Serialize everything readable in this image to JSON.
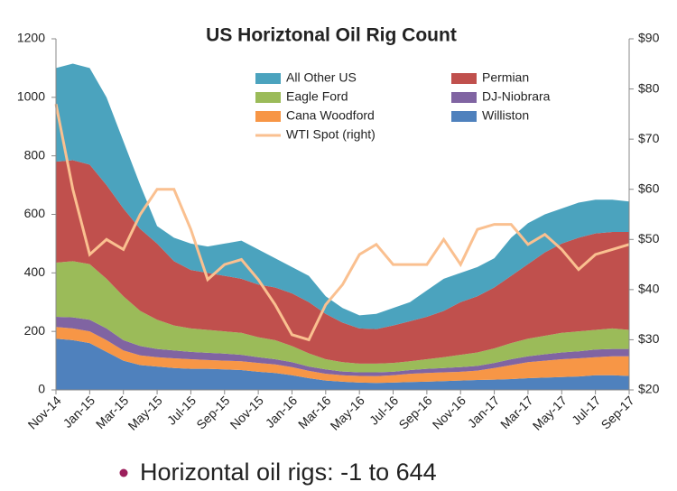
{
  "chart_data": {
    "type": "stacked_area",
    "title": "US Horiztonal Oil Rig Count",
    "categories": [
      "Nov-14",
      null,
      "Jan-15",
      null,
      "Mar-15",
      null,
      "May-15",
      null,
      "Jul-15",
      null,
      "Sep-15",
      null,
      "Nov-15",
      null,
      "Jan-16",
      null,
      "Mar-16",
      null,
      "May-16",
      null,
      "Jul-16",
      null,
      "Sep-16",
      null,
      "Nov-16",
      null,
      "Jan-17",
      null,
      "Mar-17",
      null,
      "May-17",
      null,
      "Jul-17",
      null,
      "Sep-17"
    ],
    "series": [
      {
        "name": "All Other US",
        "color": "#4ba3be",
        "values": [
          320,
          330,
          330,
          300,
          230,
          150,
          60,
          80,
          90,
          90,
          110,
          130,
          120,
          100,
          90,
          90,
          60,
          50,
          45,
          52,
          60,
          65,
          90,
          110,
          100,
          100,
          100,
          130,
          140,
          130,
          120,
          120,
          115,
          110,
          104
        ]
      },
      {
        "name": "Permian",
        "color": "#c0504d",
        "values": [
          345,
          345,
          340,
          320,
          300,
          280,
          260,
          220,
          200,
          195,
          190,
          185,
          180,
          180,
          180,
          175,
          155,
          135,
          120,
          118,
          128,
          137,
          145,
          158,
          180,
          192,
          208,
          230,
          255,
          285,
          305,
          320,
          330,
          330,
          335
        ]
      },
      {
        "name": "Eagle Ford",
        "color": "#9bbb59",
        "values": [
          185,
          192,
          190,
          170,
          150,
          120,
          100,
          85,
          80,
          78,
          76,
          75,
          68,
          65,
          55,
          45,
          35,
          32,
          30,
          30,
          30,
          30,
          33,
          37,
          42,
          46,
          50,
          55,
          60,
          63,
          67,
          68,
          67,
          70,
          65
        ]
      },
      {
        "name": "DJ-Niobrara",
        "color": "#8064a2",
        "values": [
          35,
          38,
          40,
          40,
          35,
          32,
          28,
          27,
          25,
          25,
          24,
          22,
          20,
          18,
          17,
          15,
          15,
          13,
          12,
          13,
          12,
          13,
          14,
          15,
          16,
          16,
          17,
          20,
          20,
          22,
          23,
          24,
          26,
          25,
          25
        ]
      },
      {
        "name": "Cana Woodford",
        "color": "#f79646",
        "values": [
          40,
          40,
          40,
          40,
          35,
          33,
          32,
          33,
          33,
          30,
          30,
          30,
          30,
          29,
          28,
          25,
          23,
          22,
          23,
          23,
          25,
          28,
          30,
          30,
          30,
          32,
          40,
          48,
          55,
          58,
          61,
          62,
          62,
          65,
          67
        ]
      },
      {
        "name": "Williston",
        "color": "#4f81bd",
        "values": [
          175,
          170,
          160,
          130,
          100,
          85,
          80,
          75,
          72,
          72,
          70,
          68,
          62,
          58,
          50,
          40,
          32,
          28,
          25,
          24,
          25,
          27,
          28,
          30,
          32,
          34,
          35,
          37,
          40,
          42,
          44,
          46,
          50,
          50,
          48
        ]
      },
      {
        "name": "WTI Spot (right)",
        "color": "#fac090",
        "axis": "y2",
        "type": "line",
        "values": [
          77,
          60,
          47,
          50,
          48,
          55,
          60,
          60,
          52,
          42,
          45,
          46,
          42,
          37,
          31,
          30,
          37,
          41,
          47,
          49,
          45,
          45,
          45,
          50,
          45,
          52,
          53,
          53,
          49,
          51,
          48,
          44,
          47,
          48,
          49
        ]
      }
    ],
    "ylim": [
      0,
      1200
    ],
    "yticks": [
      0,
      200,
      400,
      600,
      800,
      1000,
      1200
    ],
    "y2lim": [
      20,
      90
    ],
    "y2ticks": [
      {
        "value": 20,
        "label": "$20"
      },
      {
        "value": 30,
        "label": "$30"
      },
      {
        "value": 40,
        "label": "$40"
      },
      {
        "value": 50,
        "label": "$50"
      },
      {
        "value": 60,
        "label": "$60"
      },
      {
        "value": 70,
        "label": "$70"
      },
      {
        "value": 80,
        "label": "$80"
      },
      {
        "value": 90,
        "label": "$90"
      }
    ],
    "note": "Horizontal oil rigs: -1 to 644"
  }
}
